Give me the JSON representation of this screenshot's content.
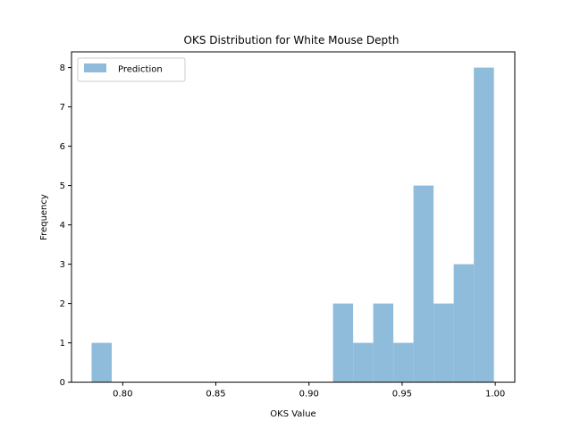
{
  "chart_data": {
    "type": "bar",
    "title": "OKS Distribution for White Mouse Depth",
    "xlabel": "OKS Value",
    "ylabel": "Frequency",
    "xlim": [
      0.7725,
      1.0105
    ],
    "ylim": [
      0,
      8.4
    ],
    "x_ticks": [
      "0.80",
      "0.85",
      "0.90",
      "0.95",
      "1.00"
    ],
    "y_ticks": [
      "0",
      "1",
      "2",
      "3",
      "4",
      "5",
      "6",
      "7",
      "8"
    ],
    "legend": {
      "position": "upper-left",
      "entries": [
        "Prediction"
      ]
    },
    "color": "#8fbcdb",
    "bins": [
      {
        "x0": 0.7833,
        "x1": 0.7941,
        "count": 1
      },
      {
        "x0": 0.7941,
        "x1": 0.8049,
        "count": 0
      },
      {
        "x0": 0.8049,
        "x1": 0.8157,
        "count": 0
      },
      {
        "x0": 0.8157,
        "x1": 0.8265,
        "count": 0
      },
      {
        "x0": 0.8265,
        "x1": 0.8373,
        "count": 0
      },
      {
        "x0": 0.8373,
        "x1": 0.8481,
        "count": 0
      },
      {
        "x0": 0.8481,
        "x1": 0.8589,
        "count": 0
      },
      {
        "x0": 0.8589,
        "x1": 0.8697,
        "count": 0
      },
      {
        "x0": 0.8697,
        "x1": 0.8805,
        "count": 0
      },
      {
        "x0": 0.8805,
        "x1": 0.8913,
        "count": 0
      },
      {
        "x0": 0.8913,
        "x1": 0.9021,
        "count": 0
      },
      {
        "x0": 0.9021,
        "x1": 0.9129,
        "count": 0
      },
      {
        "x0": 0.9129,
        "x1": 0.9237,
        "count": 2
      },
      {
        "x0": 0.9237,
        "x1": 0.9345,
        "count": 1
      },
      {
        "x0": 0.9345,
        "x1": 0.9453,
        "count": 2
      },
      {
        "x0": 0.9453,
        "x1": 0.9561,
        "count": 1
      },
      {
        "x0": 0.9561,
        "x1": 0.9669,
        "count": 5
      },
      {
        "x0": 0.9669,
        "x1": 0.9777,
        "count": 2
      },
      {
        "x0": 0.9777,
        "x1": 0.9885,
        "count": 3
      },
      {
        "x0": 0.9885,
        "x1": 0.9993,
        "count": 8
      }
    ]
  }
}
